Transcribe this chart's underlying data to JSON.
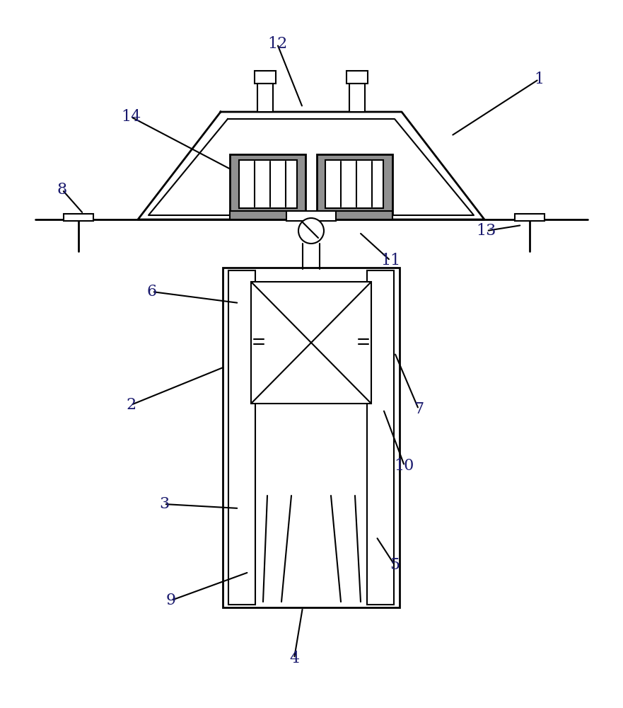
{
  "bg_color": "#ffffff",
  "line_color": "#000000",
  "dark_fill": "#909090",
  "label_color": "#1a1a6e",
  "label_defs": [
    [
      "1",
      762,
      112,
      638,
      192
    ],
    [
      "2",
      185,
      572,
      318,
      518
    ],
    [
      "3",
      232,
      712,
      338,
      718
    ],
    [
      "4",
      416,
      930,
      428,
      858
    ],
    [
      "5",
      558,
      798,
      532,
      758
    ],
    [
      "6",
      215,
      412,
      338,
      428
    ],
    [
      "7",
      592,
      578,
      558,
      498
    ],
    [
      "8",
      88,
      268,
      118,
      302
    ],
    [
      "9",
      242,
      848,
      352,
      808
    ],
    [
      "10",
      572,
      658,
      542,
      578
    ],
    [
      "11",
      552,
      368,
      508,
      328
    ],
    [
      "12",
      392,
      62,
      428,
      152
    ],
    [
      "13",
      688,
      326,
      738,
      318
    ],
    [
      "14",
      185,
      165,
      328,
      240
    ]
  ]
}
